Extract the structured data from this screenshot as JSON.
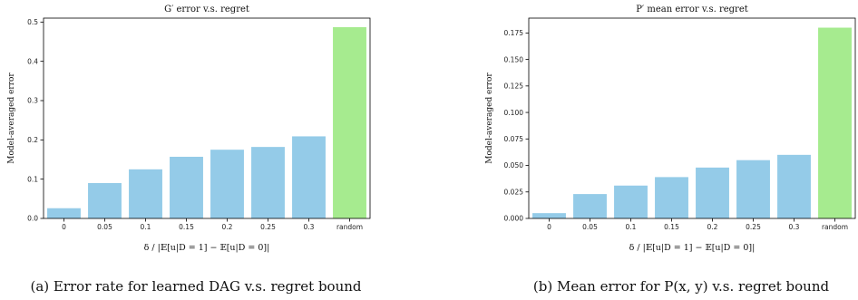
{
  "chart_data": [
    {
      "type": "bar",
      "title": "G′ error v.s. regret",
      "xlabel": "δ / |𝔼[u|D = 1] − 𝔼[u|D = 0]|",
      "ylabel": "Model-averaged error",
      "categories": [
        "0",
        "0.05",
        "0.1",
        "0.15",
        "0.2",
        "0.25",
        "0.3",
        "random"
      ],
      "values": [
        0.026,
        0.09,
        0.125,
        0.157,
        0.175,
        0.182,
        0.209,
        0.487
      ],
      "colors": [
        "#94cbe8",
        "#94cbe8",
        "#94cbe8",
        "#94cbe8",
        "#94cbe8",
        "#94cbe8",
        "#94cbe8",
        "#a6eb8f"
      ],
      "ylim": [
        0,
        0.51
      ],
      "yticks": [
        "0.0",
        "0.1",
        "0.2",
        "0.3",
        "0.4",
        "0.5"
      ],
      "grid": false,
      "caption": "(a) Error rate for learned DAG v.s. regret bound"
    },
    {
      "type": "bar",
      "title": "P′ mean error v.s. regret",
      "xlabel": "δ / |𝔼[u|D = 1] − 𝔼[u|D = 0]|",
      "ylabel": "Model-averaged error",
      "categories": [
        "0",
        "0.05",
        "0.1",
        "0.15",
        "0.2",
        "0.25",
        "0.3",
        "random"
      ],
      "values": [
        0.005,
        0.023,
        0.031,
        0.039,
        0.048,
        0.055,
        0.06,
        0.18
      ],
      "colors": [
        "#94cbe8",
        "#94cbe8",
        "#94cbe8",
        "#94cbe8",
        "#94cbe8",
        "#94cbe8",
        "#94cbe8",
        "#a6eb8f"
      ],
      "ylim": [
        0,
        0.189
      ],
      "yticks": [
        "0.000",
        "0.025",
        "0.050",
        "0.075",
        "0.100",
        "0.125",
        "0.150",
        "0.175"
      ],
      "grid": false,
      "caption": "(b) Mean error for P(x, y) v.s. regret bound"
    }
  ]
}
